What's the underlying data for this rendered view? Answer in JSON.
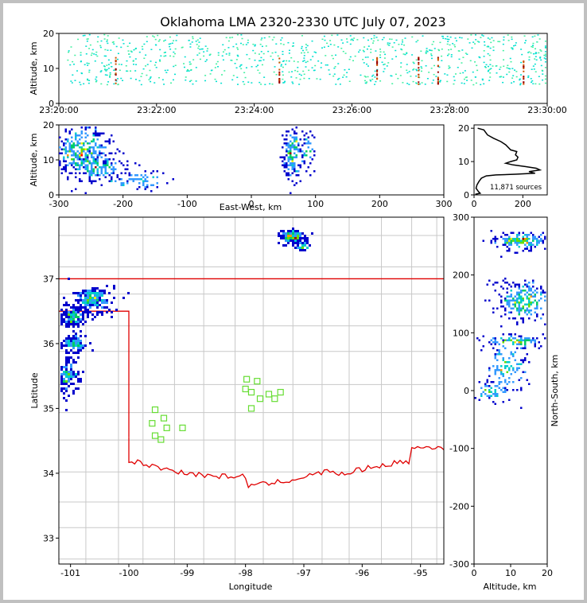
{
  "chart_data": [
    {
      "panel": "time-height",
      "type": "scatter",
      "title": "Oklahoma LMA 2320-2330 UTC July 07, 2023",
      "ylabel": "Altitude, km",
      "xlabel": "",
      "x_ticks": [
        "23:20:00",
        "23:22:00",
        "23:24:00",
        "23:26:00",
        "23:28:00",
        "23:30:00"
      ],
      "y_ticks": [
        "0",
        "10",
        "20"
      ],
      "ylim": [
        0,
        20
      ],
      "columns_minutes": [
        0.4,
        0.8,
        1.2,
        1.6,
        2.1,
        2.5,
        2.9,
        3.4,
        3.8,
        4.3,
        4.8,
        5.2,
        5.7,
        6.2,
        6.6,
        7.1,
        7.6,
        8.1,
        8.6,
        9.0,
        9.5,
        9.9
      ],
      "intense_minutes": [
        1.15,
        4.5,
        6.5,
        7.35,
        7.75,
        9.5
      ]
    },
    {
      "panel": "east-west-altitude",
      "type": "heatmap",
      "xlabel": "East-West, km",
      "ylabel": "Altitude, km",
      "x_ticks": [
        "-300",
        "-200",
        "-100",
        "0",
        "100",
        "200",
        "300"
      ],
      "y_ticks": [
        "0",
        "10",
        "20"
      ],
      "xlim": [
        -300,
        300
      ],
      "ylim": [
        0,
        20
      ],
      "clusters": [
        {
          "x": -265,
          "y": 13,
          "sx": 22,
          "sy": 4,
          "n": 360
        },
        {
          "x": -240,
          "y": 8,
          "sx": 25,
          "sy": 2,
          "n": 140
        },
        {
          "x": -175,
          "y": 4,
          "sx": 35,
          "sy": 1.5,
          "n": 60
        },
        {
          "x": 65,
          "y": 12,
          "sx": 8,
          "sy": 4,
          "n": 160
        },
        {
          "x": 88,
          "y": 12,
          "sx": 6,
          "sy": 3,
          "n": 40
        }
      ]
    },
    {
      "panel": "altitude-histogram",
      "type": "line",
      "annotation": "11,871 sources",
      "x_ticks": [
        "0",
        "200"
      ],
      "y_ticks": [
        "0",
        "10",
        "20"
      ],
      "xlim": [
        0,
        300
      ],
      "ylim": [
        0,
        21
      ],
      "points": [
        [
          15,
          20
        ],
        [
          40,
          19.5
        ],
        [
          55,
          18
        ],
        [
          80,
          17
        ],
        [
          110,
          16
        ],
        [
          130,
          15
        ],
        [
          150,
          13.5
        ],
        [
          175,
          13
        ],
        [
          170,
          12
        ],
        [
          180,
          11.3
        ],
        [
          175,
          10.5
        ],
        [
          150,
          10
        ],
        [
          130,
          9.5
        ],
        [
          160,
          9
        ],
        [
          210,
          8.5
        ],
        [
          255,
          8
        ],
        [
          270,
          7.5
        ],
        [
          225,
          7
        ],
        [
          250,
          6.5
        ],
        [
          170,
          6.2
        ],
        [
          90,
          6
        ],
        [
          50,
          5.7
        ],
        [
          30,
          5
        ],
        [
          20,
          4
        ],
        [
          12,
          3
        ],
        [
          8,
          2
        ],
        [
          18,
          1
        ],
        [
          25,
          0.5
        ],
        [
          5,
          0.2
        ]
      ]
    },
    {
      "panel": "plan-view",
      "type": "heatmap",
      "xlabel": "Longitude",
      "ylabel": "Latitude",
      "x_ticks": [
        "-101",
        "-100",
        "-99",
        "-98",
        "-97",
        "-96",
        "-95"
      ],
      "y_ticks": [
        "33",
        "34",
        "35",
        "36",
        "37"
      ],
      "xlim": [
        -101.2,
        -94.6
      ],
      "ylim": [
        32.6,
        37.95
      ],
      "clusters": [
        {
          "lon": -100.62,
          "lat": 36.68,
          "sx": 0.18,
          "sy": 0.1,
          "n": 200
        },
        {
          "lon": -100.95,
          "lat": 36.4,
          "sx": 0.12,
          "sy": 0.08,
          "n": 120
        },
        {
          "lon": -100.95,
          "lat": 36.0,
          "sx": 0.12,
          "sy": 0.07,
          "n": 100
        },
        {
          "lon": -101.05,
          "lat": 35.5,
          "sx": 0.1,
          "sy": 0.15,
          "n": 120
        },
        {
          "lon": -97.2,
          "lat": 37.65,
          "sx": 0.12,
          "sy": 0.06,
          "n": 140
        },
        {
          "lon": -97.0,
          "lat": 37.5,
          "sx": 0.07,
          "sy": 0.05,
          "n": 30
        }
      ],
      "stations": [
        [
          -97.98,
          35.45
        ],
        [
          -97.8,
          35.42
        ],
        [
          -98.0,
          35.3
        ],
        [
          -97.9,
          35.25
        ],
        [
          -97.75,
          35.15
        ],
        [
          -97.6,
          35.22
        ],
        [
          -97.5,
          35.15
        ],
        [
          -97.4,
          35.25
        ],
        [
          -97.9,
          35.0
        ],
        [
          -99.55,
          34.98
        ],
        [
          -99.4,
          34.85
        ],
        [
          -99.6,
          34.77
        ],
        [
          -99.35,
          34.7
        ],
        [
          -99.08,
          34.7
        ],
        [
          -99.55,
          34.58
        ],
        [
          -99.45,
          34.52
        ]
      ]
    },
    {
      "panel": "altitude-north-south",
      "type": "heatmap",
      "xlabel": "Altitude, km",
      "ylabel": "North-South, km",
      "x_ticks": [
        "0",
        "10",
        "20"
      ],
      "y_ticks": [
        "-300",
        "-200",
        "-100",
        "0",
        "100",
        "200",
        "300"
      ],
      "xlim": [
        0,
        20
      ],
      "ylim": [
        -300,
        300
      ],
      "clusters": [
        {
          "x": 13,
          "y": 260,
          "sx": 4,
          "sy": 8,
          "n": 160
        },
        {
          "x": 14,
          "y": 155,
          "sx": 4,
          "sy": 18,
          "n": 240
        },
        {
          "x": 11,
          "y": 85,
          "sx": 5,
          "sy": 6,
          "n": 90
        },
        {
          "x": 9,
          "y": 40,
          "sx": 3,
          "sy": 25,
          "n": 110
        },
        {
          "x": 5,
          "y": 0,
          "sx": 3,
          "sy": 8,
          "n": 50
        }
      ]
    }
  ]
}
